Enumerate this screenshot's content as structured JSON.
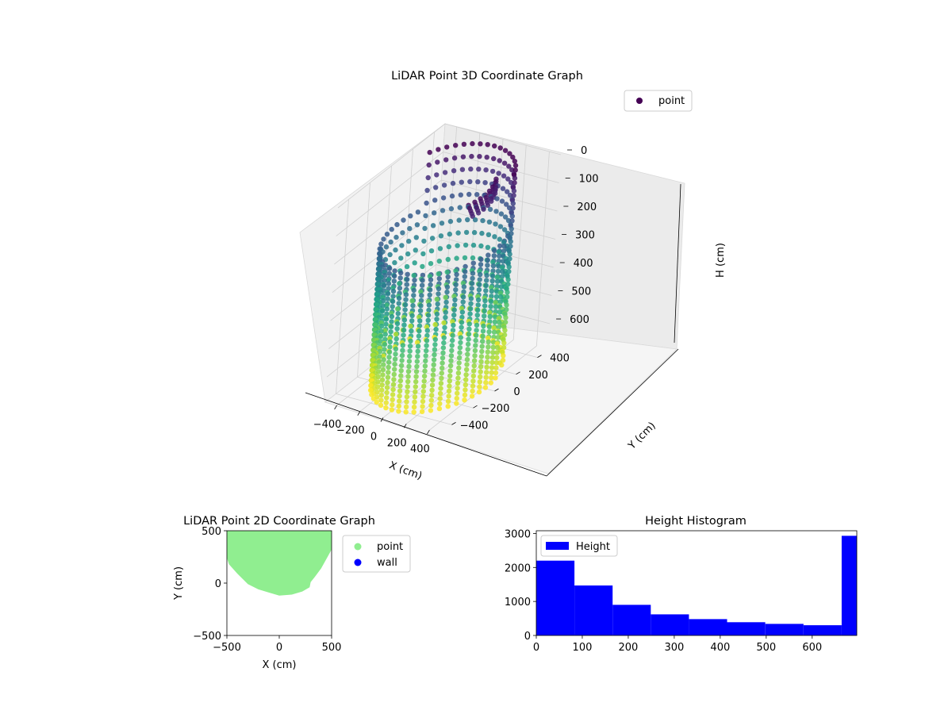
{
  "chart_data": [
    {
      "type": "scatter3d",
      "title": "LiDAR Point 3D Coordinate Graph",
      "xlabel": "X (cm)",
      "ylabel": "Y (cm)",
      "zlabel": "H (cm)",
      "x_ticks": [
        "−400",
        "−200",
        "0",
        "200",
        "400"
      ],
      "y_ticks": [
        "−400",
        "−200",
        "0",
        "200",
        "400"
      ],
      "z_ticks": [
        "0",
        "100",
        "200",
        "300",
        "400",
        "500",
        "600"
      ],
      "xlim": [
        -500,
        500
      ],
      "ylim": [
        -500,
        500
      ],
      "zlim": [
        0,
        690
      ],
      "z_inverted": true,
      "colormap": "viridis",
      "legend": {
        "placement": "upper right",
        "entries": [
          "point"
        ]
      },
      "series": [
        {
          "name": "point",
          "color": "#440154",
          "description_points": "cylindrical shell of points, radius ~420 cm, heights 0–690 cm; near wall sampled densely at low heights"
        }
      ]
    },
    {
      "type": "scatter",
      "title": "LiDAR Point 2D Coordinate Graph",
      "xlabel": "X (cm)",
      "ylabel": "Y (cm)",
      "x_ticks": [
        "−500",
        "0",
        "500"
      ],
      "y_ticks": [
        "−500",
        "0",
        "500"
      ],
      "xlim": [
        -500,
        500
      ],
      "ylim": [
        -500,
        500
      ],
      "legend": {
        "placement": "outside right",
        "entries": [
          "point",
          "wall"
        ]
      },
      "series": [
        {
          "name": "point",
          "color": "#90ee90",
          "outline": [
            [
              -500,
              500
            ],
            [
              500,
              500
            ],
            [
              500,
              320
            ],
            [
              450,
              230
            ],
            [
              400,
              140
            ],
            [
              340,
              60
            ],
            [
              300,
              10
            ],
            [
              290,
              -40
            ],
            [
              220,
              -80
            ],
            [
              120,
              -110
            ],
            [
              0,
              -120
            ],
            [
              -100,
              -90
            ],
            [
              -200,
              -60
            ],
            [
              -300,
              -10
            ],
            [
              -400,
              90
            ],
            [
              -480,
              180
            ],
            [
              -500,
              240
            ]
          ]
        },
        {
          "name": "wall",
          "color": "#0000ff",
          "values": []
        }
      ]
    },
    {
      "type": "bar",
      "title": "Height Histogram",
      "xlabel": "",
      "ylabel": "",
      "x_ticks": [
        "0",
        "100",
        "200",
        "300",
        "400",
        "500",
        "600"
      ],
      "y_ticks": [
        "0",
        "1000",
        "2000",
        "3000"
      ],
      "xlim": [
        0,
        697
      ],
      "ylim": [
        0,
        3080
      ],
      "legend": {
        "placement": "upper left",
        "entries": [
          "Height"
        ]
      },
      "series": [
        {
          "name": "Height",
          "color": "#0000ff",
          "bin_edges": [
            0,
            83,
            166,
            249,
            332,
            415,
            498,
            581,
            664,
            697
          ],
          "values": [
            2200,
            1470,
            900,
            620,
            480,
            390,
            340,
            300,
            2930
          ]
        }
      ]
    }
  ]
}
